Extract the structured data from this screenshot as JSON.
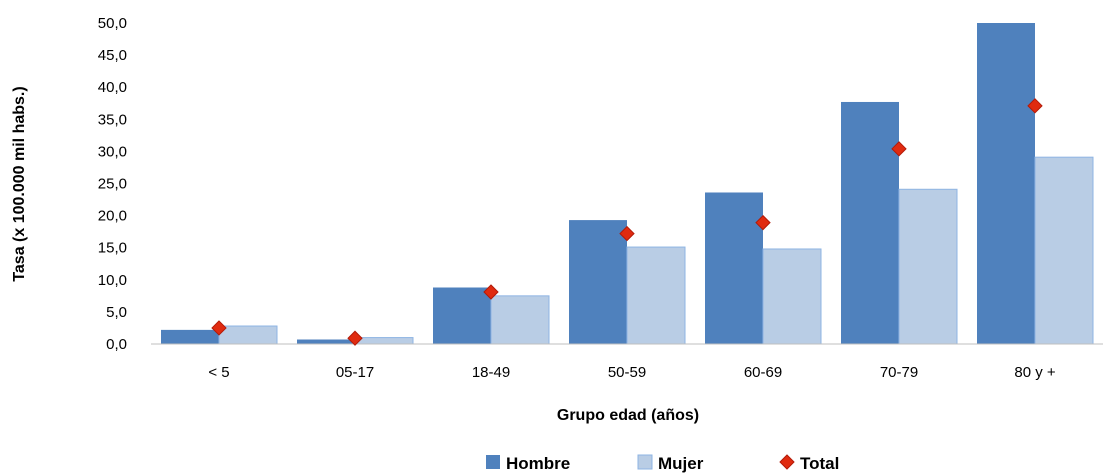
{
  "chart_data": {
    "type": "bar",
    "categories": [
      "< 5",
      "05-17",
      "18-49",
      "50-59",
      "60-69",
      "70-79",
      "80 y +"
    ],
    "series": [
      {
        "name": "Hombre",
        "kind": "bar",
        "color": "#4f81bd",
        "values": [
          2.2,
          0.7,
          8.8,
          19.3,
          23.6,
          37.7,
          50.0
        ]
      },
      {
        "name": "Mujer",
        "kind": "bar",
        "color": "#b9cde5",
        "values": [
          2.8,
          1.0,
          7.5,
          15.1,
          14.8,
          24.1,
          29.1
        ]
      },
      {
        "name": "Total",
        "kind": "marker",
        "color": "#e02b10",
        "values": [
          2.5,
          0.9,
          8.1,
          17.2,
          18.9,
          30.4,
          37.1
        ]
      }
    ],
    "xlabel": "Grupo edad (años)",
    "ylabel": "Tasa (x 100.000 mil habs.)",
    "ylim": [
      0,
      50
    ],
    "yticks": [
      "0,0",
      "5,0",
      "10,0",
      "15,0",
      "20,0",
      "25,0",
      "30,0",
      "35,0",
      "40,0",
      "45,0",
      "50,0"
    ],
    "grid": false,
    "legend_position": "bottom"
  }
}
